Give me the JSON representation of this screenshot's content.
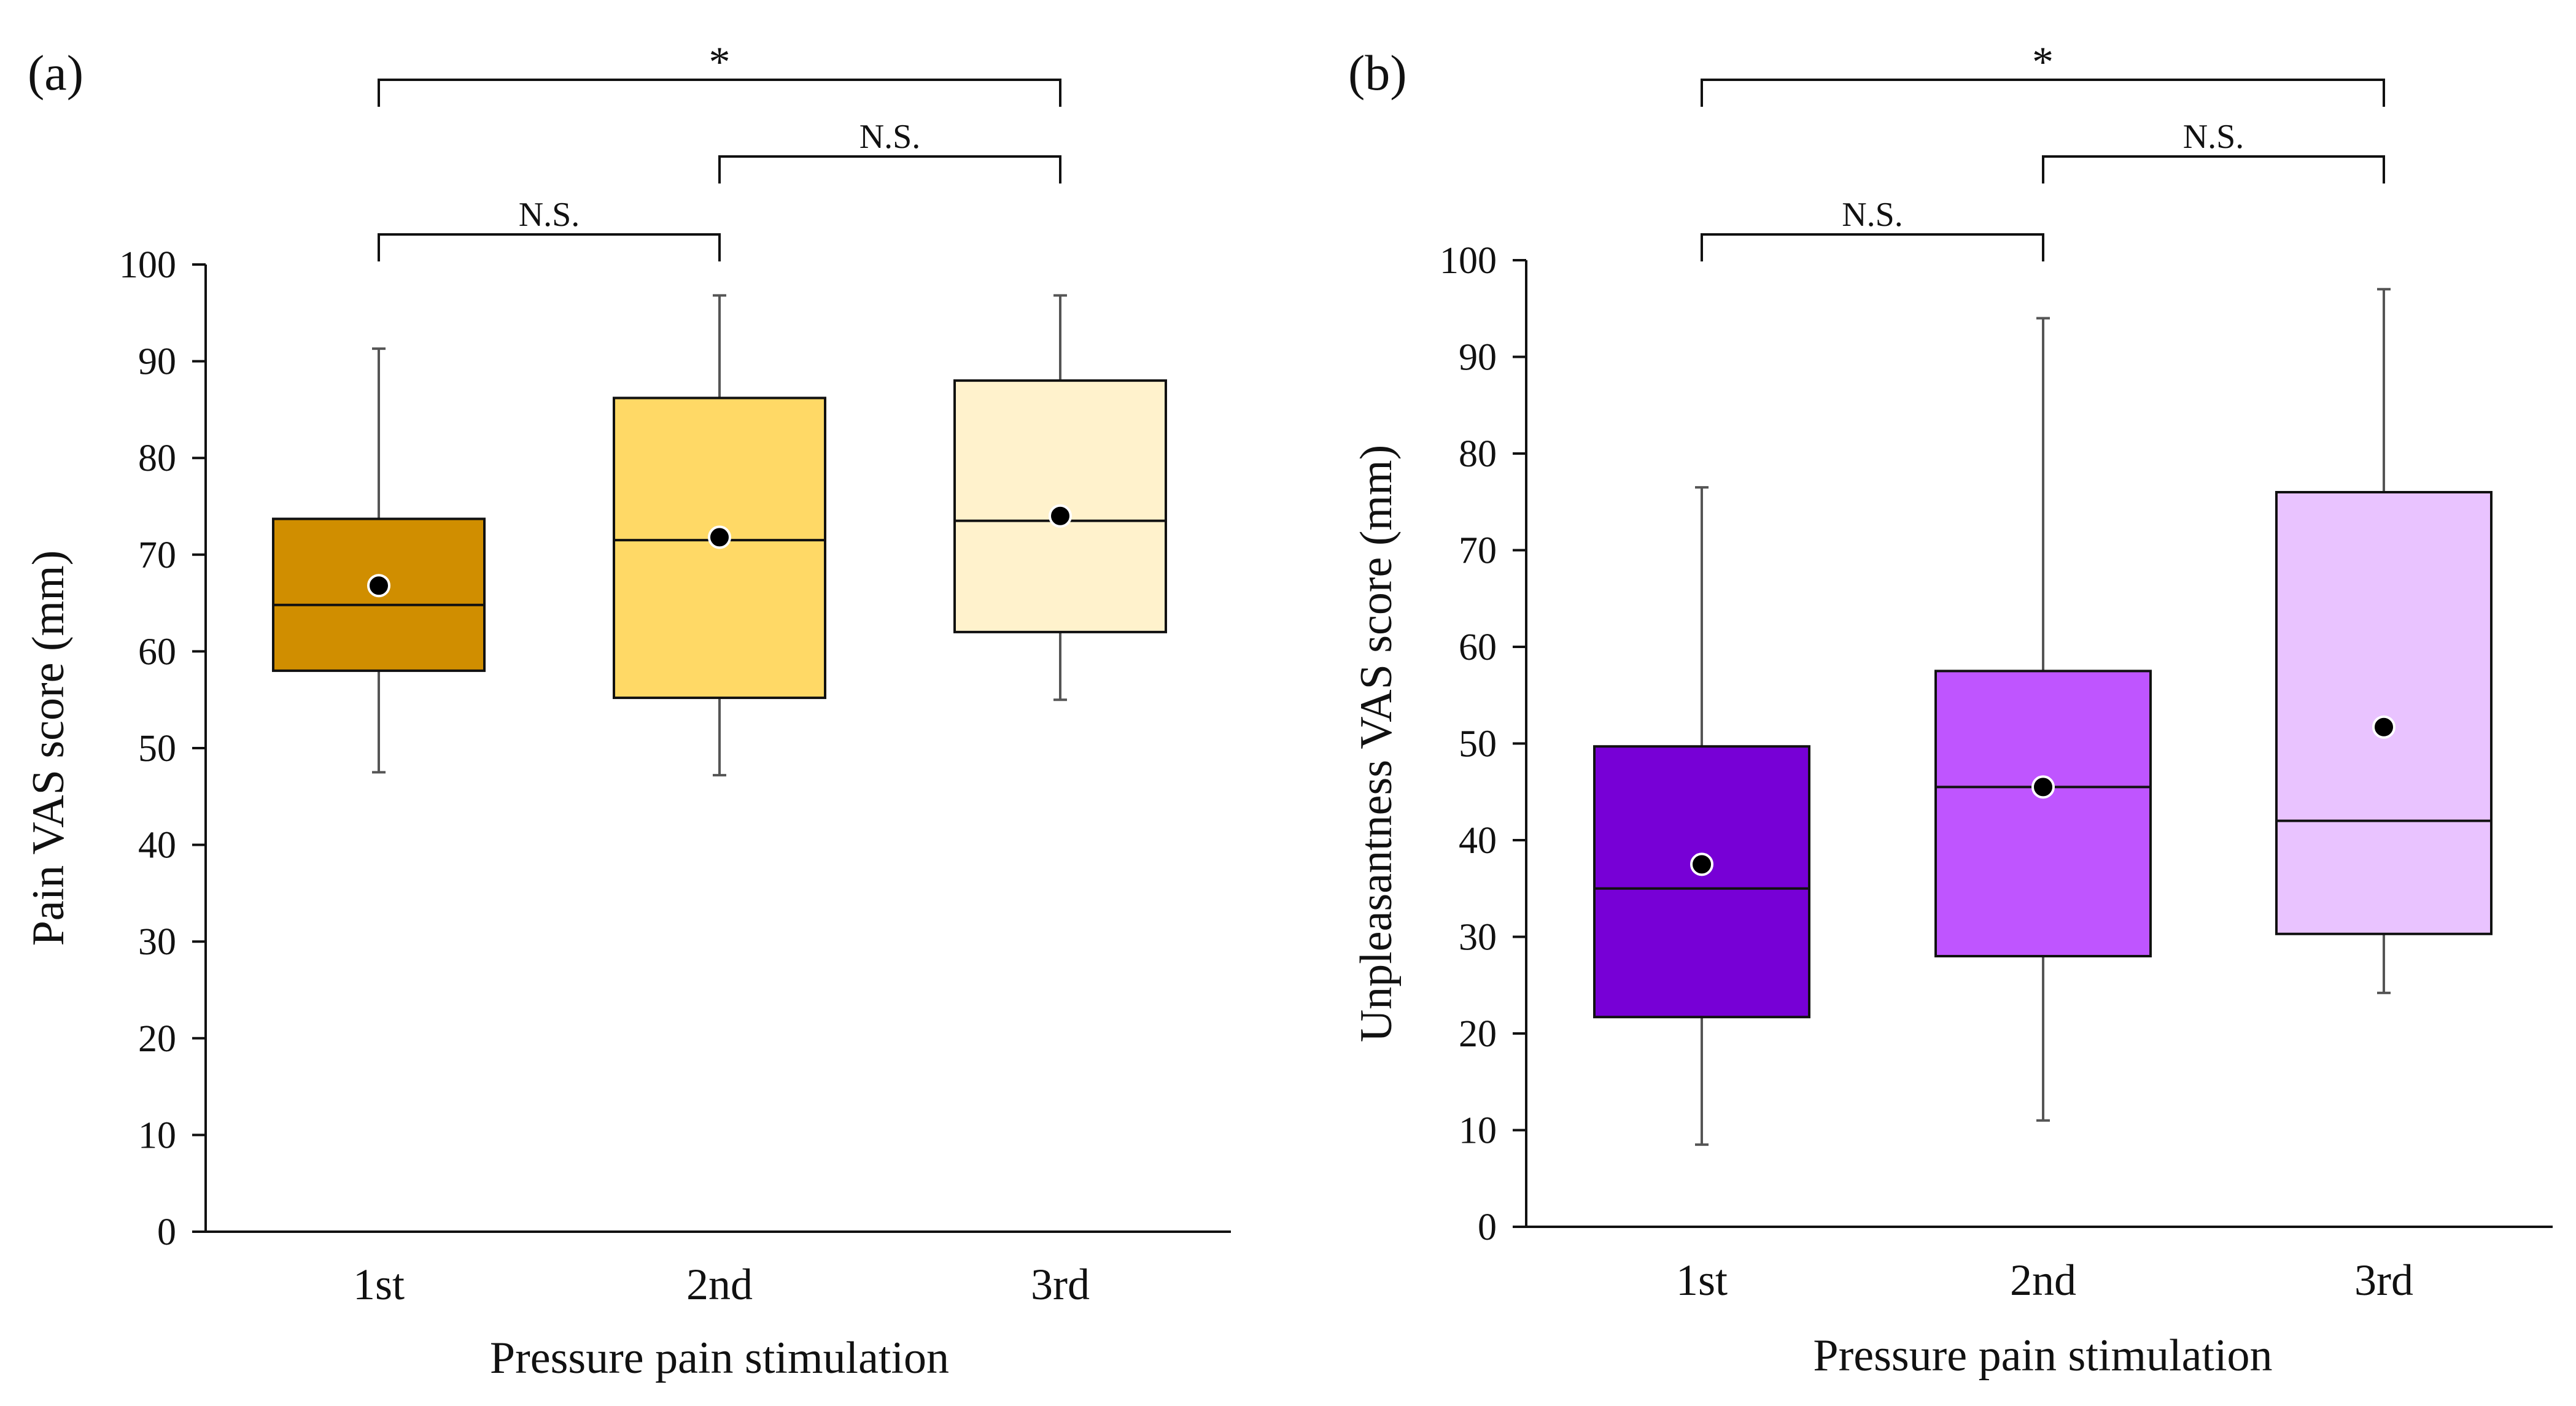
{
  "chart_data": [
    {
      "panel_label": "(a)",
      "type": "box",
      "categories": [
        "1st",
        "2nd",
        "3rd"
      ],
      "xlabel": "Pressure pain stimulation",
      "ylabel": "Pain VAS score (mm)",
      "ylim": [
        0,
        100
      ],
      "yticks": [
        0,
        10,
        20,
        30,
        40,
        50,
        60,
        70,
        80,
        90,
        100
      ],
      "boxes": [
        {
          "category": "1st",
          "whisker_low": 47.5,
          "q1": 58,
          "median": 64.8,
          "q3": 73.7,
          "whisker_high": 91.3,
          "mean": 66.8,
          "color": "#D08E00"
        },
        {
          "category": "2nd",
          "whisker_low": 47.2,
          "q1": 55.2,
          "median": 71.5,
          "q3": 86.2,
          "whisker_high": 96.8,
          "mean": 71.8,
          "color": "#FFD966"
        },
        {
          "category": "3rd",
          "whisker_low": 55,
          "q1": 62,
          "median": 73.5,
          "q3": 88,
          "whisker_high": 96.8,
          "mean": 74,
          "color": "#FFF2CC"
        }
      ],
      "comparisons": [
        {
          "from": "1st",
          "to": "3rd",
          "label": "*"
        },
        {
          "from": "2nd",
          "to": "3rd",
          "label": "N.S."
        },
        {
          "from": "1st",
          "to": "2nd",
          "label": "N.S."
        }
      ]
    },
    {
      "panel_label": "(b)",
      "type": "box",
      "categories": [
        "1st",
        "2nd",
        "3rd"
      ],
      "xlabel": "Pressure pain stimulation",
      "ylabel": "Unpleasantness VAS score (mm)",
      "ylim": [
        0,
        100
      ],
      "yticks": [
        0,
        10,
        20,
        30,
        40,
        50,
        60,
        70,
        80,
        90,
        100
      ],
      "boxes": [
        {
          "category": "1st",
          "whisker_low": 8.5,
          "q1": 21.7,
          "median": 35,
          "q3": 49.7,
          "whisker_high": 76.5,
          "mean": 37.5,
          "color": "#7700D6"
        },
        {
          "category": "2nd",
          "whisker_low": 11,
          "q1": 28,
          "median": 45.5,
          "q3": 57.5,
          "whisker_high": 94,
          "mean": 45.5,
          "color": "#BF55FF"
        },
        {
          "category": "3rd",
          "whisker_low": 24.2,
          "q1": 30.3,
          "median": 42,
          "q3": 76,
          "whisker_high": 97,
          "mean": 51.7,
          "color": "#E9C3FF"
        }
      ],
      "comparisons": [
        {
          "from": "1st",
          "to": "3rd",
          "label": "*"
        },
        {
          "from": "2nd",
          "to": "3rd",
          "label": "N.S."
        },
        {
          "from": "1st",
          "to": "2nd",
          "label": "N.S."
        }
      ]
    }
  ]
}
